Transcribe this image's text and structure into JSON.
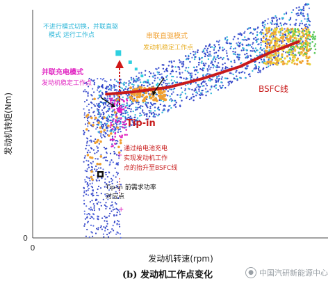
{
  "chart_data": {
    "type": "scatter",
    "title": "",
    "xlabel": "发动机转速(rpm)",
    "ylabel": "发动机转矩(Nm)",
    "x_ticks": [
      "0"
    ],
    "y_ticks": [
      "0"
    ],
    "xlim": [
      0,
      1
    ],
    "ylim": [
      0,
      1
    ],
    "grid": false,
    "legend": "none",
    "colors": {
      "blue": "#3547c8",
      "cyan": "#2fb7d9",
      "orange": "#f0a030",
      "yellow": "#e8d23a",
      "magenta": "#e020c0",
      "red": "#d01818",
      "darkred": "#8a1a1a",
      "black": "#111111"
    },
    "bsfc_line": {
      "name": "BSFC线",
      "points": [
        [
          0.25,
          0.63
        ],
        [
          0.34,
          0.64
        ],
        [
          0.46,
          0.66
        ],
        [
          0.58,
          0.7
        ],
        [
          0.7,
          0.75
        ],
        [
          0.8,
          0.81
        ],
        [
          0.9,
          0.86
        ]
      ]
    },
    "annotations": {
      "no_switch": "不进行模式切换，并联直驱模式  运行工作点",
      "series_direct": "串联直驱模式",
      "series_direct_sub": "发动机稳定工作点",
      "parallel_charge": "并联充电模式",
      "parallel_charge_sub": "发动机稳定工作点",
      "tip_in": "Tip-in",
      "battery_charge": "通过给电池充电实现发动机工作点的抬升至BSFC线",
      "tip_in_point": "Tip-in 前需求功率对应点",
      "bsfc": "BSFC线"
    }
  },
  "caption": "(b) 发动机工作点变化",
  "watermark": "中国汽研新能源中心"
}
